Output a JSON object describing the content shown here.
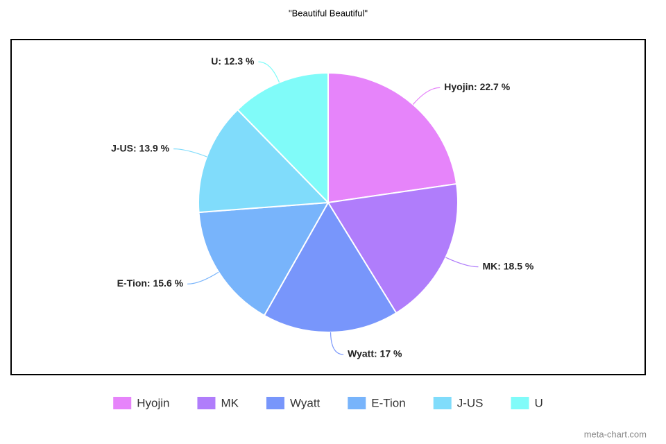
{
  "chart_data": {
    "type": "pie",
    "title": "\"Beautiful Beautiful\"",
    "categories": [
      "Hyojin",
      "MK",
      "Wyatt",
      "E-Tion",
      "J-US",
      "U"
    ],
    "values": [
      22.7,
      18.5,
      17,
      15.6,
      13.9,
      12.3
    ],
    "value_labels": [
      "Hyojin: 22.7 %",
      "MK: 18.5 %",
      "Wyatt: 17 %",
      "E-Tion: 15.6 %",
      "J-US: 13.9 %",
      "U: 12.3 %"
    ],
    "colors": [
      "#e684fa",
      "#b07dfb",
      "#7896fb",
      "#78b4fb",
      "#80dcfb",
      "#80fbf9"
    ],
    "legend": "bottom",
    "watermark": "meta-chart.com"
  }
}
